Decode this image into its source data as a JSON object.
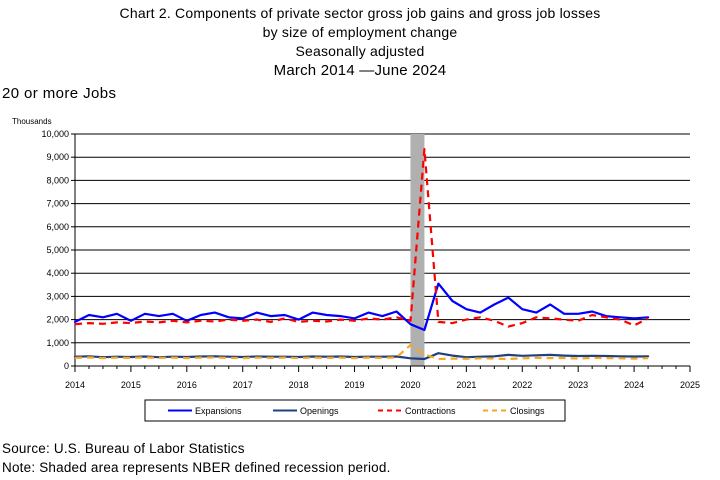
{
  "title_lines": [
    "Chart 2. Components of private sector gross job gains and gross job losses",
    "by size of employment change",
    "Seasonally adjusted"
  ],
  "date_line": "March 2014 —June 2024",
  "subset_label": "20 or more Jobs",
  "units_label": "Thousands",
  "source": "Source: U.S. Bureau of Labor Statistics",
  "note": "Note: Shaded area represents NBER defined recession period.",
  "colors": {
    "expansions": "#0000ff",
    "openings": "#1f3f7f",
    "contractions": "#ff0000",
    "closings": "#f5a623",
    "recession": "#b0b0b0"
  },
  "chart_data": {
    "type": "line",
    "title": "Chart 2. Components of private sector gross job gains and gross job losses by size of employment change",
    "ylabel": "Thousands",
    "ylim": [
      0,
      10000
    ],
    "xlim": [
      2014,
      2025
    ],
    "yticks": [
      "0",
      "1,000",
      "2,000",
      "3,000",
      "4,000",
      "5,000",
      "6,000",
      "7,000",
      "8,000",
      "9,000",
      "10,000"
    ],
    "xticks": [
      "2014",
      "2015",
      "2016",
      "2017",
      "2018",
      "2019",
      "2020",
      "2021",
      "2022",
      "2023",
      "2024",
      "2025"
    ],
    "recession": [
      2020.0,
      2020.25
    ],
    "grid": true,
    "legend_position": "bottom",
    "x": [
      2014.0,
      2014.25,
      2014.5,
      2014.75,
      2015.0,
      2015.25,
      2015.5,
      2015.75,
      2016.0,
      2016.25,
      2016.5,
      2016.75,
      2017.0,
      2017.25,
      2017.5,
      2017.75,
      2018.0,
      2018.25,
      2018.5,
      2018.75,
      2019.0,
      2019.25,
      2019.5,
      2019.75,
      2020.0,
      2020.25,
      2020.5,
      2020.75,
      2021.0,
      2021.25,
      2021.5,
      2021.75,
      2022.0,
      2022.25,
      2022.5,
      2022.75,
      2023.0,
      2023.25,
      2023.5,
      2023.75,
      2024.0,
      2024.25
    ],
    "series": [
      {
        "name": "Expansions",
        "style": "solid",
        "values": [
          1900,
          2200,
          2100,
          2250,
          1950,
          2250,
          2150,
          2250,
          1950,
          2200,
          2300,
          2100,
          2050,
          2300,
          2150,
          2200,
          2000,
          2300,
          2200,
          2150,
          2050,
          2300,
          2150,
          2350,
          1800,
          1550,
          3550,
          2800,
          2450,
          2300,
          2650,
          2950,
          2450,
          2300,
          2650,
          2250,
          2250,
          2350,
          2150,
          2100,
          2050,
          2100
        ]
      },
      {
        "name": "Openings",
        "style": "solid",
        "values": [
          400,
          420,
          380,
          400,
          390,
          410,
          380,
          400,
          390,
          410,
          420,
          400,
          390,
          410,
          400,
          400,
          390,
          410,
          400,
          410,
          390,
          400,
          400,
          410,
          330,
          300,
          550,
          450,
          380,
          400,
          420,
          480,
          440,
          460,
          480,
          450,
          430,
          440,
          430,
          420,
          410,
          420
        ]
      },
      {
        "name": "Contractions",
        "style": "dashed",
        "values": [
          1800,
          1850,
          1820,
          1880,
          1850,
          1920,
          1880,
          1950,
          1880,
          1950,
          1920,
          2000,
          1950,
          2000,
          1900,
          2050,
          1900,
          1950,
          1920,
          2000,
          1950,
          2050,
          2000,
          2100,
          1950,
          9350,
          1900,
          1850,
          2000,
          2100,
          1950,
          1700,
          1850,
          2100,
          2050,
          2000,
          1950,
          2200,
          2100,
          2000,
          1750,
          2050
        ]
      },
      {
        "name": "Closings",
        "style": "dashed",
        "values": [
          350,
          370,
          340,
          360,
          350,
          370,
          350,
          360,
          340,
          360,
          370,
          350,
          340,
          360,
          350,
          360,
          340,
          360,
          350,
          360,
          340,
          360,
          350,
          370,
          900,
          500,
          300,
          320,
          310,
          330,
          320,
          300,
          330,
          350,
          340,
          350,
          320,
          350,
          340,
          330,
          320,
          340
        ]
      }
    ]
  }
}
